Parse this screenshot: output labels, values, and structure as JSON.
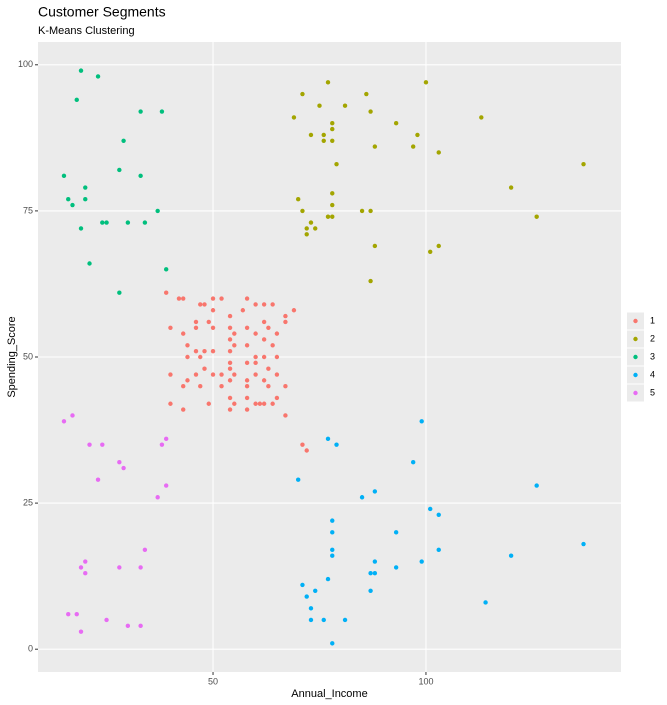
{
  "chart_data": {
    "type": "scatter",
    "title": "Customer Segments",
    "subtitle": "K-Means Clustering",
    "x_label": "Annual_Income",
    "y_label": "Spending_Score",
    "xlim": [
      8.9,
      145.8
    ],
    "ylim": [
      -3.9,
      103.9
    ],
    "xticks": [
      50,
      100
    ],
    "yticks": [
      0,
      25,
      50,
      75,
      100
    ],
    "grid": true,
    "legend": "right",
    "series": [
      {
        "name": "1",
        "color": "#F8766D",
        "x": [
          40,
          40,
          40,
          42,
          43,
          39,
          43,
          43,
          43,
          44,
          44,
          44,
          46,
          46,
          46,
          46,
          47,
          48,
          47,
          47,
          48,
          48,
          49,
          49,
          50,
          50,
          50,
          50,
          50,
          52,
          52,
          52,
          54,
          54,
          54,
          54,
          54,
          54,
          54,
          54,
          54,
          55,
          55,
          55,
          55,
          57,
          58,
          58,
          58,
          58,
          58,
          58,
          58,
          58,
          60,
          60,
          60,
          60,
          60,
          60,
          61,
          62,
          62,
          62,
          62,
          62,
          62,
          63,
          63,
          63,
          64,
          64,
          64,
          65,
          65,
          65,
          65,
          67,
          67,
          67,
          67,
          69,
          71,
          72
        ],
        "y": [
          55,
          47,
          42,
          60,
          60,
          61,
          54,
          45,
          41,
          50,
          52,
          46,
          56,
          51,
          47,
          55,
          59,
          59,
          50,
          45,
          48,
          51,
          56,
          42,
          55,
          51,
          47,
          60,
          58,
          60,
          47,
          45,
          55,
          53,
          51,
          49,
          48,
          46,
          43,
          41,
          57,
          54,
          52,
          47,
          42,
          58,
          60,
          55,
          52,
          49,
          46,
          43,
          41,
          45,
          50,
          42,
          59,
          54,
          49,
          47,
          42,
          56,
          59,
          53,
          50,
          46,
          42,
          55,
          48,
          45,
          59,
          52,
          42,
          47,
          50,
          43,
          54,
          57,
          56,
          45,
          40,
          58,
          35,
          34
        ]
      },
      {
        "name": "2",
        "color": "#A3A500",
        "x": [
          77,
          71,
          86,
          100,
          81,
          75,
          87,
          78,
          78,
          76,
          73,
          93,
          98,
          69,
          113,
          78,
          97,
          88,
          76,
          103,
          137,
          79,
          120,
          78,
          70,
          78,
          71,
          85,
          87,
          126,
          77,
          73,
          72,
          74,
          72,
          88,
          103,
          101,
          87,
          78
        ],
        "y": [
          97,
          95,
          95,
          97,
          93,
          93,
          92,
          90,
          89,
          88,
          88,
          90,
          88,
          91,
          91,
          87,
          86,
          86,
          87,
          85,
          83,
          83,
          79,
          78,
          77,
          76,
          75,
          75,
          75,
          74,
          74,
          73,
          72,
          72,
          71,
          69,
          69,
          68,
          63,
          74
        ]
      },
      {
        "name": "3",
        "color": "#00BF7D",
        "x": [
          19,
          23,
          18,
          33,
          38,
          29,
          15,
          28,
          33,
          20,
          16,
          20,
          17,
          37,
          24,
          25,
          30,
          34,
          19,
          21,
          39,
          28
        ],
        "y": [
          99,
          98,
          94,
          92,
          92,
          87,
          81,
          82,
          81,
          79,
          77,
          77,
          76,
          75,
          73,
          73,
          73,
          73,
          72,
          66,
          65,
          61
        ]
      },
      {
        "name": "4",
        "color": "#00B0F6",
        "x": [
          77,
          79,
          99,
          97,
          126,
          88,
          85,
          70,
          101,
          103,
          78,
          78,
          93,
          78,
          103,
          120,
          78,
          99,
          88,
          87,
          88,
          93,
          71,
          77,
          74,
          87,
          72,
          73,
          73,
          76,
          81,
          78,
          114,
          137
        ],
        "y": [
          36,
          35,
          39,
          32,
          28,
          27,
          26,
          29,
          24,
          23,
          22,
          20,
          20,
          17,
          17,
          16,
          16,
          15,
          15,
          13,
          13,
          14,
          11,
          12,
          10,
          10,
          9,
          7,
          5,
          5,
          5,
          1,
          8,
          18
        ]
      },
      {
        "name": "5",
        "color": "#E76BF3",
        "x": [
          17,
          15,
          21,
          24,
          39,
          38,
          28,
          29,
          23,
          39,
          37,
          20,
          19,
          20,
          28,
          33,
          34,
          16,
          18,
          25,
          30,
          33,
          19
        ],
        "y": [
          40,
          39,
          35,
          35,
          36,
          35,
          32,
          31,
          29,
          28,
          26,
          15,
          14,
          13,
          14,
          14,
          17,
          6,
          6,
          5,
          4,
          4,
          3
        ]
      }
    ]
  }
}
